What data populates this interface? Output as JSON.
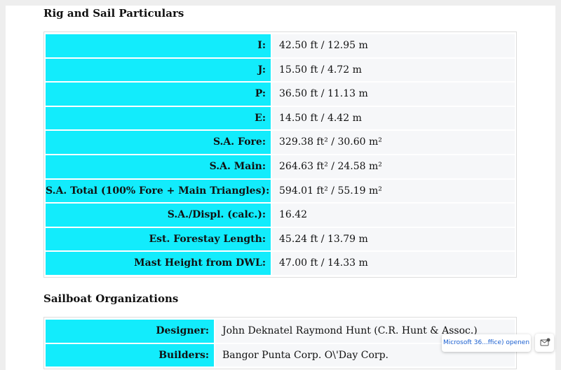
{
  "sections": [
    {
      "title": "Rig and Sail Particulars",
      "rows": [
        [
          "I:",
          "42.50 ft / 12.95 m"
        ],
        [
          "J:",
          "15.50 ft / 4.72 m"
        ],
        [
          "P:",
          "36.50 ft / 11.13 m"
        ],
        [
          "E:",
          "14.50 ft / 4.42 m"
        ],
        [
          "S.A. Fore:",
          "329.38 ft² / 30.60 m²"
        ],
        [
          "S.A. Main:",
          "264.63 ft² / 24.58 m²"
        ],
        [
          "S.A. Total (100% Fore + Main Triangles):",
          "594.01 ft² / 55.19 m²"
        ],
        [
          "S.A./Displ. (calc.):",
          "16.42"
        ],
        [
          "Est. Forestay Length:",
          "45.24 ft / 13.79 m"
        ],
        [
          "Mast Height from DWL:",
          "47.00 ft / 14.33 m"
        ]
      ]
    },
    {
      "title": "Sailboat Organizations",
      "rows": [
        [
          "Designer:",
          "John Deknatel Raymond Hunt (C.R. Hunt & Assoc.)"
        ],
        [
          "Builders:",
          "Bangor Punta Corp. O\\'Day Corp."
        ]
      ]
    }
  ],
  "popup": "Microsoft 36...ffice) openen"
}
